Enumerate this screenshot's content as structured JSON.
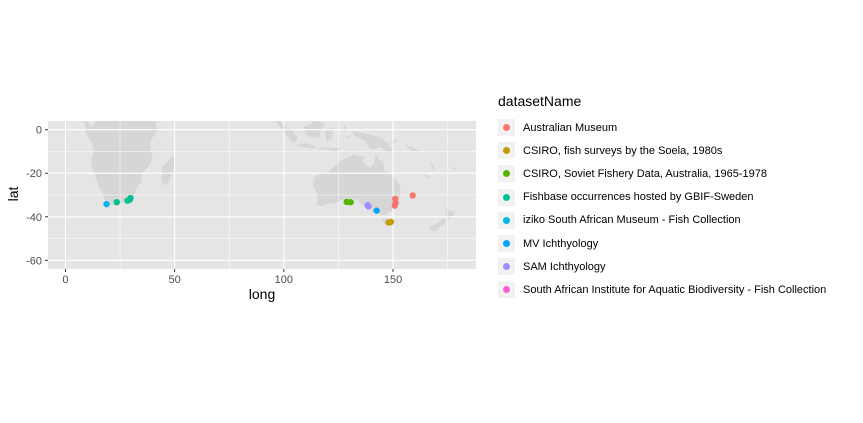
{
  "chart_data": {
    "type": "scatter",
    "title": "",
    "xlabel": "long",
    "ylabel": "lat",
    "xlim": [
      -8,
      188
    ],
    "ylim": [
      -64,
      4
    ],
    "x_ticks": [
      0,
      50,
      100,
      150
    ],
    "y_ticks": [
      0,
      -20,
      -40,
      -60
    ],
    "x_tick_labels": [
      "0",
      "50",
      "100",
      "150"
    ],
    "y_tick_labels": [
      "0",
      "-20",
      "-40",
      "-60"
    ],
    "grid": true,
    "background": "#e5e5e5",
    "land_color": "#d6d6d6",
    "legend_title": "datasetName",
    "legend_position": "right",
    "series": [
      {
        "name": "Australian Museum",
        "color": "#f8766d",
        "points": [
          [
            151.2,
            -33.6
          ],
          [
            151.0,
            -31.8
          ],
          [
            150.8,
            -34.9
          ],
          [
            159.0,
            -30.2
          ]
        ]
      },
      {
        "name": "CSIRO, fish surveys by the Soela, 1980s",
        "color": "#c49a00",
        "points": [
          [
            148.0,
            -42.6
          ],
          [
            149.0,
            -42.4
          ]
        ]
      },
      {
        "name": "CSIRO, Soviet Fishery Data, Australia, 1965-1978",
        "color": "#53b400",
        "points": [
          [
            128.8,
            -33.2
          ],
          [
            130.6,
            -33.3
          ]
        ]
      },
      {
        "name": "Fishbase occurrences hosted by GBIF-Sweden",
        "color": "#00c094",
        "points": [
          [
            23.5,
            -33.3
          ],
          [
            28.4,
            -32.6
          ],
          [
            29.4,
            -32.2
          ],
          [
            29.8,
            -31.4
          ]
        ]
      },
      {
        "name": "iziko South African Museum - Fish Collection",
        "color": "#00b6eb",
        "points": [
          [
            18.8,
            -34.2
          ]
        ]
      },
      {
        "name": "MV Ichthyology",
        "color": "#06a4ff",
        "points": [
          [
            142.5,
            -37.2
          ]
        ]
      },
      {
        "name": "SAM Ichthyology",
        "color": "#a58aff",
        "points": [
          [
            138.3,
            -34.7
          ],
          [
            138.8,
            -35.2
          ]
        ]
      },
      {
        "name": "South African Institute for Aquatic Biodiversity - Fish Collection",
        "color": "#fb61d7",
        "points": []
      }
    ]
  }
}
